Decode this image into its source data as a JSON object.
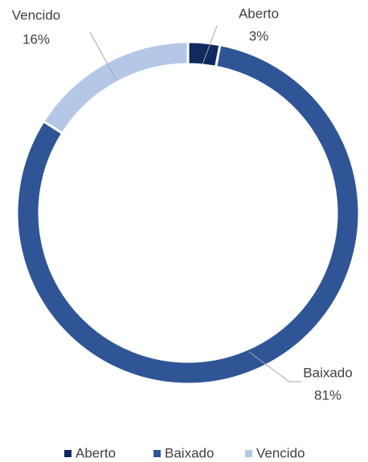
{
  "chart_data": {
    "type": "donut",
    "categories": [
      "Aberto",
      "Baixado",
      "Vencido"
    ],
    "values": [
      3,
      81,
      16
    ],
    "value_labels": [
      "3%",
      "81%",
      "16%"
    ],
    "colors": [
      "#0e2a5e",
      "#2f5597",
      "#b4c7e7"
    ],
    "legend": "bottom"
  }
}
